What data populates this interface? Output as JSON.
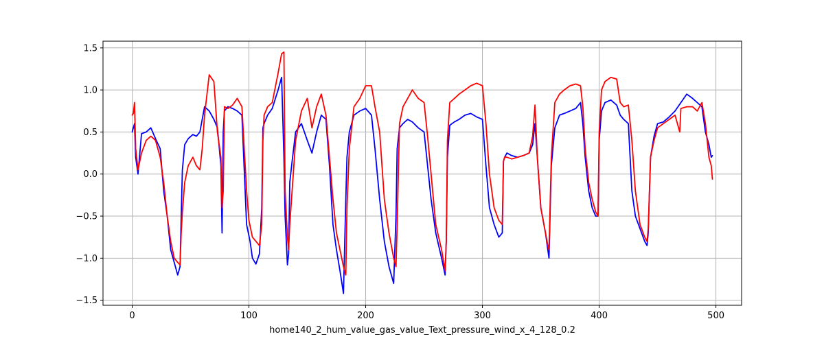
{
  "chart_data": {
    "type": "line",
    "title": "",
    "xlabel": "home140_2_hum_value_gas_value_Text_pressure_wind_x_4_128_0.2",
    "ylabel": "",
    "xlim": [
      -25,
      522
    ],
    "ylim": [
      -1.56,
      1.58
    ],
    "xticks": [
      0,
      100,
      200,
      300,
      400,
      500
    ],
    "yticks": [
      -1.5,
      -1.0,
      -0.5,
      0.0,
      0.5,
      1.0,
      1.5
    ],
    "xtick_labels": [
      "0",
      "100",
      "200",
      "300",
      "400",
      "500"
    ],
    "ytick_labels": [
      "−1.5",
      "−1.0",
      "−0.5",
      "0.0",
      "0.5",
      "1.0",
      "1.5"
    ],
    "grid": true,
    "legend": "none",
    "series": [
      {
        "color": "#0000ff",
        "x": [
          0,
          2,
          3,
          5,
          8,
          12,
          16,
          20,
          24,
          27,
          30,
          33,
          36,
          39,
          41,
          42,
          43,
          45,
          48,
          52,
          55,
          58,
          62,
          66,
          70,
          73,
          76,
          77,
          78,
          79,
          82,
          86,
          90,
          94,
          98,
          101,
          103,
          106,
          109,
          111,
          112,
          113,
          116,
          120,
          125,
          128,
          130,
          131,
          133,
          134,
          135,
          137,
          140,
          145,
          150,
          154,
          158,
          162,
          166,
          169,
          172,
          175,
          178,
          181,
          183,
          184,
          186,
          190,
          195,
          200,
          205,
          208,
          212,
          216,
          220,
          224,
          226,
          227,
          229,
          232,
          236,
          240,
          245,
          250,
          253,
          256,
          260,
          265,
          268,
          269,
          270,
          272,
          276,
          280,
          285,
          290,
          295,
          300,
          303,
          306,
          310,
          314,
          317,
          318,
          319,
          321,
          325,
          330,
          335,
          340,
          343,
          345,
          347,
          350,
          354,
          356,
          357,
          359,
          362,
          366,
          370,
          375,
          380,
          384,
          386,
          388,
          391,
          394,
          397,
          399,
          400,
          402,
          405,
          410,
          415,
          418,
          421,
          425,
          428,
          431,
          435,
          439,
          441,
          442,
          444,
          447,
          450,
          455,
          460,
          465,
          470,
          475,
          480,
          484,
          488,
          491,
          494,
          496,
          497
        ],
        "y": [
          0.5,
          0.6,
          0.2,
          0.0,
          0.48,
          0.5,
          0.55,
          0.42,
          0.3,
          -0.2,
          -0.5,
          -0.9,
          -1.05,
          -1.2,
          -1.1,
          -0.5,
          0.05,
          0.35,
          0.42,
          0.47,
          0.45,
          0.5,
          0.8,
          0.75,
          0.65,
          0.55,
          0.1,
          -0.7,
          0.5,
          0.75,
          0.8,
          0.78,
          0.75,
          0.7,
          -0.6,
          -0.8,
          -1.0,
          -1.07,
          -0.95,
          -0.4,
          0.55,
          0.6,
          0.7,
          0.78,
          1.0,
          1.15,
          0.2,
          -0.5,
          -1.08,
          -0.95,
          -0.1,
          0.15,
          0.5,
          0.6,
          0.4,
          0.25,
          0.5,
          0.7,
          0.65,
          0.1,
          -0.6,
          -0.9,
          -1.15,
          -1.42,
          -0.3,
          0.2,
          0.5,
          0.7,
          0.75,
          0.78,
          0.7,
          0.3,
          -0.3,
          -0.8,
          -1.1,
          -1.3,
          -0.5,
          0.3,
          0.55,
          0.6,
          0.65,
          0.62,
          0.55,
          0.5,
          0.1,
          -0.3,
          -0.7,
          -1.0,
          -1.2,
          -0.8,
          0.2,
          0.58,
          0.62,
          0.65,
          0.7,
          0.72,
          0.68,
          0.65,
          0.1,
          -0.4,
          -0.6,
          -0.75,
          -0.7,
          0.15,
          0.2,
          0.25,
          0.22,
          0.2,
          0.22,
          0.25,
          0.35,
          0.6,
          0.2,
          -0.4,
          -0.7,
          -0.9,
          -1.0,
          0.1,
          0.55,
          0.7,
          0.72,
          0.75,
          0.78,
          0.85,
          0.6,
          0.2,
          -0.2,
          -0.4,
          -0.5,
          -0.5,
          0.4,
          0.75,
          0.85,
          0.88,
          0.82,
          0.7,
          0.65,
          0.6,
          -0.2,
          -0.5,
          -0.65,
          -0.8,
          -0.85,
          -0.7,
          0.2,
          0.45,
          0.6,
          0.62,
          0.68,
          0.75,
          0.85,
          0.95,
          0.9,
          0.85,
          0.8,
          0.5,
          0.35,
          0.2,
          0.22
        ]
      },
      {
        "color": "#ff0000",
        "x": [
          0,
          1,
          2,
          3,
          5,
          8,
          12,
          16,
          20,
          24,
          27,
          30,
          33,
          36,
          39,
          41,
          42,
          43,
          45,
          48,
          52,
          55,
          58,
          60,
          62,
          66,
          70,
          73,
          76,
          77,
          78,
          79,
          82,
          86,
          90,
          94,
          98,
          100,
          103,
          106,
          109,
          111,
          112,
          113,
          116,
          120,
          125,
          128,
          130,
          131,
          133,
          134,
          135,
          137,
          140,
          145,
          150,
          154,
          158,
          162,
          166,
          169,
          172,
          175,
          178,
          181,
          183,
          184,
          186,
          190,
          195,
          200,
          205,
          208,
          212,
          216,
          220,
          224,
          226,
          227,
          229,
          232,
          236,
          240,
          245,
          250,
          253,
          256,
          260,
          265,
          268,
          269,
          270,
          272,
          276,
          280,
          285,
          290,
          295,
          300,
          303,
          306,
          310,
          314,
          317,
          318,
          319,
          321,
          325,
          330,
          335,
          340,
          343,
          345,
          347,
          350,
          354,
          356,
          357,
          359,
          362,
          366,
          370,
          375,
          380,
          384,
          386,
          388,
          391,
          394,
          397,
          399,
          400,
          402,
          405,
          410,
          415,
          418,
          421,
          425,
          428,
          431,
          435,
          439,
          441,
          442,
          444,
          447,
          450,
          455,
          460,
          465,
          469,
          470,
          475,
          480,
          484,
          488,
          491,
          494,
          496,
          497
        ],
        "y": [
          0.7,
          0.72,
          0.85,
          0.3,
          0.05,
          0.25,
          0.4,
          0.45,
          0.4,
          0.2,
          -0.1,
          -0.5,
          -0.8,
          -1.0,
          -1.05,
          -1.08,
          -0.7,
          -0.45,
          -0.1,
          0.1,
          0.2,
          0.1,
          0.05,
          0.3,
          0.7,
          1.18,
          1.1,
          0.5,
          0.2,
          -0.4,
          -0.2,
          0.8,
          0.78,
          0.82,
          0.9,
          0.8,
          -0.2,
          -0.55,
          -0.75,
          -0.8,
          -0.85,
          -0.6,
          0.4,
          0.7,
          0.8,
          0.85,
          1.2,
          1.43,
          1.45,
          -0.2,
          -0.75,
          -0.9,
          -0.6,
          -0.2,
          0.4,
          0.75,
          0.9,
          0.55,
          0.8,
          0.95,
          0.7,
          0.2,
          -0.3,
          -0.7,
          -0.9,
          -1.1,
          -1.2,
          -0.4,
          0.3,
          0.8,
          0.9,
          1.05,
          1.05,
          0.8,
          0.5,
          -0.3,
          -0.7,
          -1.0,
          -1.1,
          -0.6,
          0.6,
          0.8,
          0.9,
          1.0,
          0.9,
          0.85,
          0.45,
          0.0,
          -0.6,
          -0.9,
          -1.15,
          -0.8,
          0.4,
          0.85,
          0.9,
          0.95,
          1.0,
          1.05,
          1.08,
          1.05,
          0.6,
          0.0,
          -0.4,
          -0.55,
          -0.6,
          0.15,
          0.2,
          0.2,
          0.18,
          0.2,
          0.22,
          0.25,
          0.45,
          0.82,
          0.2,
          -0.4,
          -0.7,
          -0.85,
          -0.9,
          0.2,
          0.85,
          0.95,
          1.0,
          1.05,
          1.07,
          1.05,
          0.8,
          0.3,
          -0.1,
          -0.3,
          -0.45,
          -0.5,
          0.5,
          1.0,
          1.1,
          1.15,
          1.13,
          0.85,
          0.8,
          0.82,
          0.4,
          -0.2,
          -0.6,
          -0.75,
          -0.8,
          -0.65,
          0.2,
          0.4,
          0.55,
          0.6,
          0.65,
          0.7,
          0.5,
          0.78,
          0.8,
          0.8,
          0.75,
          0.85,
          0.6,
          0.2,
          0.1,
          -0.06
        ]
      }
    ]
  }
}
